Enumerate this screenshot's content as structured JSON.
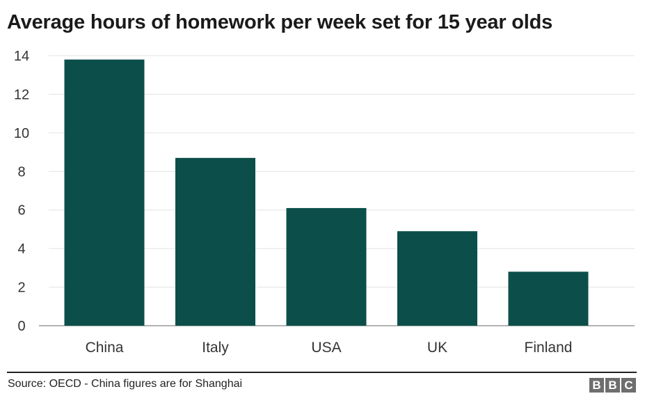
{
  "chart_data": {
    "type": "bar",
    "title": "Average hours of homework per week set for 15 year olds",
    "categories": [
      "China",
      "Italy",
      "USA",
      "UK",
      "Finland"
    ],
    "values": [
      13.8,
      8.7,
      6.1,
      4.9,
      2.8
    ],
    "y_ticks": [
      "0",
      "2",
      "4",
      "6",
      "8",
      "10",
      "12",
      "14"
    ],
    "ylim": [
      0,
      14
    ],
    "grid": true,
    "bar_color": "#0c4f4a"
  },
  "footer": {
    "source": "Source: OECD - China figures are for Shanghai",
    "logo_letters": [
      "B",
      "B",
      "C"
    ]
  }
}
